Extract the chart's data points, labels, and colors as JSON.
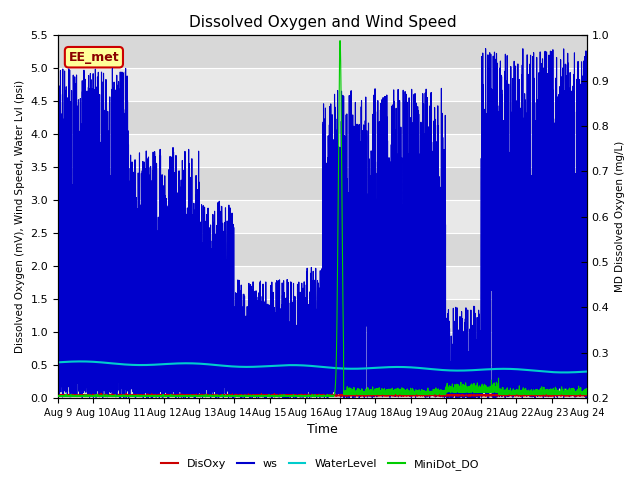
{
  "title": "Dissolved Oxygen and Wind Speed",
  "xlabel": "Time",
  "ylabel_left": "Dissolved Oxygen (mV), Wind Speed, Water Lvl (psi)",
  "ylabel_right": "MD Dissolved Oxygen (mg/L)",
  "ylim_left": [
    0.0,
    5.5
  ],
  "ylim_right": [
    0.2,
    1.0
  ],
  "xlim": [
    0,
    15
  ],
  "xtick_labels": [
    "Aug 9",
    "Aug 10",
    "Aug 11",
    "Aug 12",
    "Aug 13",
    "Aug 14",
    "Aug 15",
    "Aug 16",
    "Aug 17",
    "Aug 18",
    "Aug 19",
    "Aug 20",
    "Aug 21",
    "Aug 22",
    "Aug 23",
    "Aug 24"
  ],
  "xtick_positions": [
    0,
    1,
    2,
    3,
    4,
    5,
    6,
    7,
    8,
    9,
    10,
    11,
    12,
    13,
    14,
    15
  ],
  "legend_label": "EE_met",
  "bg_color": "#e0e0e0",
  "bg_color_alt": "#d0d0d0",
  "series_colors": {
    "DisOxy": "#cc0000",
    "ws": "#0000cc",
    "WaterLevel": "#00cccc",
    "MiniDot_DO": "#00cc00"
  },
  "legend_labels": [
    "DisOxy",
    "ws",
    "WaterLevel",
    "MiniDot_DO"
  ],
  "yticks_left": [
    0.0,
    0.5,
    1.0,
    1.5,
    2.0,
    2.5,
    3.0,
    3.5,
    4.0,
    4.5,
    5.0,
    5.5
  ],
  "yticks_right": [
    0.2,
    0.3,
    0.4,
    0.5,
    0.6,
    0.7,
    0.8,
    0.9,
    1.0
  ]
}
